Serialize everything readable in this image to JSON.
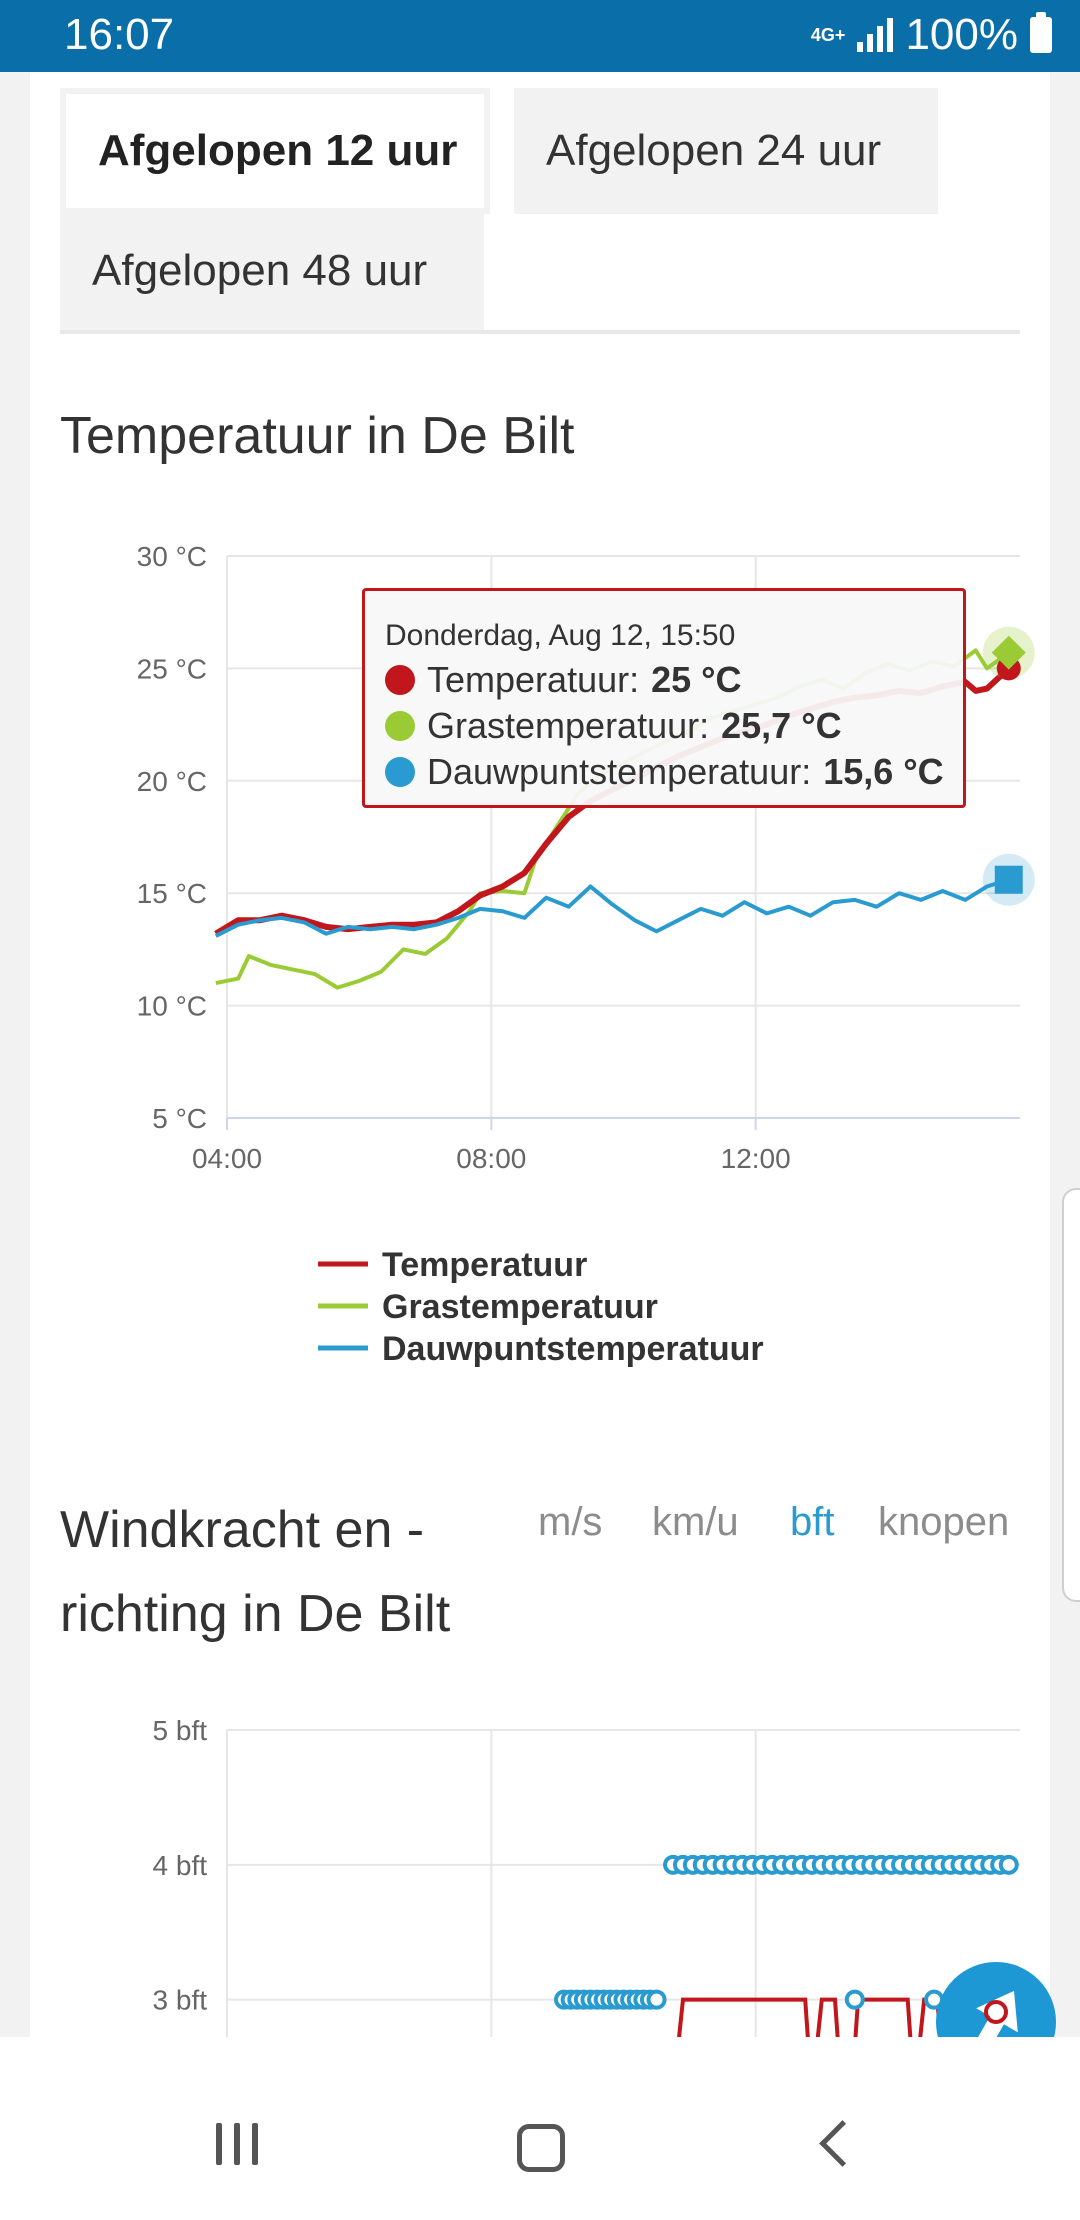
{
  "status_bar": {
    "time": "16:07",
    "network": "4G+",
    "battery": "100%"
  },
  "tabs": [
    {
      "label": "Afgelopen 12 uur",
      "active": true
    },
    {
      "label": "Afgelopen 24 uur",
      "active": false
    },
    {
      "label": "Afgelopen 48 uur",
      "active": false
    }
  ],
  "temperature": {
    "title": "Temperatuur in De Bilt",
    "tooltip": {
      "date": "Donderdag, Aug 12, 15:50",
      "rows": [
        {
          "label": "Temperatuur:",
          "value": "25 °C",
          "color": "#c0161c"
        },
        {
          "label": "Grastemperatuur:",
          "value": "25,7 °C",
          "color": "#9acb34"
        },
        {
          "label": "Dauwpuntstemperatuur:",
          "value": "15,6 °C",
          "color": "#2a9bd0"
        }
      ]
    }
  },
  "wind": {
    "title_line1": "Windkracht en -",
    "title_line2": "richting in De Bilt",
    "units": [
      "m/s",
      "km/u",
      "bft",
      "knopen"
    ],
    "active_unit": "bft"
  },
  "chart_data": [
    {
      "type": "line",
      "title": "Temperatuur in De Bilt",
      "x_ticks": [
        "04:00",
        "08:00",
        "12:00"
      ],
      "y_ticks": [
        "5 °C",
        "10 °C",
        "15 °C",
        "20 °C",
        "25 °C",
        "30 °C"
      ],
      "ylim": [
        5,
        30
      ],
      "xlim_hours": [
        4,
        16
      ],
      "legend": "bottom",
      "series": [
        {
          "name": "Temperatuur",
          "color": "#c0161c",
          "points": [
            [
              3.83,
              13.2
            ],
            [
              4.17,
              13.8
            ],
            [
              4.5,
              13.8
            ],
            [
              4.83,
              14.0
            ],
            [
              5.17,
              13.8
            ],
            [
              5.5,
              13.5
            ],
            [
              5.83,
              13.4
            ],
            [
              6.17,
              13.5
            ],
            [
              6.5,
              13.6
            ],
            [
              6.83,
              13.6
            ],
            [
              7.17,
              13.7
            ],
            [
              7.5,
              14.2
            ],
            [
              7.83,
              14.9
            ],
            [
              8.17,
              15.3
            ],
            [
              8.5,
              15.9
            ],
            [
              8.83,
              17.2
            ],
            [
              9.17,
              18.4
            ],
            [
              9.5,
              19.1
            ],
            [
              9.83,
              19.6
            ],
            [
              10.17,
              20.1
            ],
            [
              10.5,
              20.6
            ],
            [
              10.83,
              21.1
            ],
            [
              11.17,
              21.5
            ],
            [
              11.5,
              21.9
            ],
            [
              11.83,
              22.2
            ],
            [
              12.17,
              22.5
            ],
            [
              12.5,
              22.9
            ],
            [
              12.83,
              23.2
            ],
            [
              13.17,
              23.5
            ],
            [
              13.5,
              23.7
            ],
            [
              13.83,
              23.8
            ],
            [
              14.17,
              24.0
            ],
            [
              14.5,
              23.9
            ],
            [
              14.83,
              24.2
            ],
            [
              15.17,
              24.4
            ],
            [
              15.33,
              24.0
            ],
            [
              15.5,
              24.1
            ],
            [
              15.83,
              25.0
            ]
          ]
        },
        {
          "name": "Grastemperatuur",
          "color": "#9acb34",
          "points": [
            [
              3.83,
              11.0
            ],
            [
              4.17,
              11.2
            ],
            [
              4.33,
              12.2
            ],
            [
              4.67,
              11.8
            ],
            [
              5.0,
              11.6
            ],
            [
              5.33,
              11.4
            ],
            [
              5.67,
              10.8
            ],
            [
              6.0,
              11.1
            ],
            [
              6.33,
              11.5
            ],
            [
              6.67,
              12.5
            ],
            [
              7.0,
              12.3
            ],
            [
              7.33,
              13.0
            ],
            [
              7.67,
              14.2
            ],
            [
              7.83,
              15.0
            ],
            [
              8.17,
              15.1
            ],
            [
              8.5,
              15.0
            ],
            [
              8.67,
              16.5
            ],
            [
              9.0,
              18.0
            ],
            [
              9.33,
              19.5
            ],
            [
              9.67,
              20.3
            ],
            [
              10.0,
              20.8
            ],
            [
              10.33,
              21.3
            ],
            [
              10.67,
              21.8
            ],
            [
              11.0,
              22.2
            ],
            [
              11.33,
              22.8
            ],
            [
              11.67,
              23.1
            ],
            [
              12.0,
              23.4
            ],
            [
              12.33,
              23.7
            ],
            [
              12.67,
              24.2
            ],
            [
              13.0,
              24.5
            ],
            [
              13.33,
              24.1
            ],
            [
              13.67,
              24.8
            ],
            [
              14.0,
              25.2
            ],
            [
              14.33,
              24.9
            ],
            [
              14.67,
              25.3
            ],
            [
              15.0,
              25.1
            ],
            [
              15.33,
              25.8
            ],
            [
              15.5,
              25.0
            ],
            [
              15.83,
              25.7
            ]
          ]
        },
        {
          "name": "Dauwpuntstemperatuur",
          "color": "#2a9bd0",
          "points": [
            [
              3.83,
              13.1
            ],
            [
              4.17,
              13.6
            ],
            [
              4.5,
              13.8
            ],
            [
              4.83,
              13.9
            ],
            [
              5.17,
              13.7
            ],
            [
              5.5,
              13.2
            ],
            [
              5.83,
              13.5
            ],
            [
              6.17,
              13.4
            ],
            [
              6.5,
              13.5
            ],
            [
              6.83,
              13.4
            ],
            [
              7.17,
              13.6
            ],
            [
              7.5,
              13.9
            ],
            [
              7.83,
              14.3
            ],
            [
              8.17,
              14.2
            ],
            [
              8.5,
              13.9
            ],
            [
              8.83,
              14.8
            ],
            [
              9.17,
              14.4
            ],
            [
              9.5,
              15.3
            ],
            [
              9.83,
              14.5
            ],
            [
              10.17,
              13.8
            ],
            [
              10.5,
              13.3
            ],
            [
              10.83,
              13.8
            ],
            [
              11.17,
              14.3
            ],
            [
              11.5,
              14.0
            ],
            [
              11.83,
              14.6
            ],
            [
              12.17,
              14.1
            ],
            [
              12.5,
              14.4
            ],
            [
              12.83,
              14.0
            ],
            [
              13.17,
              14.6
            ],
            [
              13.5,
              14.7
            ],
            [
              13.83,
              14.4
            ],
            [
              14.17,
              15.0
            ],
            [
              14.5,
              14.7
            ],
            [
              14.83,
              15.1
            ],
            [
              15.17,
              14.7
            ],
            [
              15.5,
              15.3
            ],
            [
              15.83,
              15.6
            ]
          ]
        }
      ]
    },
    {
      "type": "line",
      "title": "Windkracht en - richting in De Bilt",
      "x_ticks": [],
      "y_ticks": [
        "3 bft",
        "4 bft",
        "5 bft"
      ],
      "ylim": [
        2.3,
        5
      ],
      "xlim_hours": [
        4,
        16
      ],
      "series": [
        {
          "name": "",
          "color": "#c0161c",
          "points": [
            [
              10.75,
              2.3
            ],
            [
              10.9,
              3.0
            ],
            [
              12.75,
              3.0
            ],
            [
              12.85,
              2.3
            ],
            [
              13.0,
              3.0
            ],
            [
              13.2,
              3.0
            ],
            [
              13.3,
              2.3
            ],
            [
              13.45,
              2.3
            ],
            [
              13.55,
              3.0
            ],
            [
              14.3,
              3.0
            ],
            [
              14.4,
              2.3
            ],
            [
              14.55,
              3.0
            ],
            [
              14.75,
              3.0
            ],
            [
              14.85,
              2.3
            ],
            [
              15.1,
              3.0
            ],
            [
              15.3,
              2.3
            ],
            [
              15.5,
              3.0
            ],
            [
              15.6,
              3.0
            ],
            [
              15.83,
              2.3
            ]
          ]
        },
        {
          "name": "",
          "color": "#2a9bd0",
          "points": [
            [
              9.1,
              3.0
            ],
            [
              9.2,
              3.0
            ],
            [
              9.3,
              3.0
            ],
            [
              9.4,
              3.0
            ],
            [
              9.5,
              3.0
            ],
            [
              9.6,
              3.0
            ],
            [
              9.7,
              3.0
            ],
            [
              9.8,
              3.0
            ],
            [
              9.9,
              3.0
            ],
            [
              10.0,
              3.0
            ],
            [
              10.1,
              3.0
            ],
            [
              10.2,
              3.0
            ],
            [
              10.3,
              3.0
            ],
            [
              10.4,
              3.0
            ],
            [
              10.5,
              3.0
            ],
            [
              10.75,
              4.0
            ],
            [
              10.9,
              4.0
            ],
            [
              11.05,
              4.0
            ],
            [
              11.2,
              4.0
            ],
            [
              11.35,
              4.0
            ],
            [
              11.5,
              4.0
            ],
            [
              11.65,
              4.0
            ],
            [
              11.8,
              4.0
            ],
            [
              11.95,
              4.0
            ],
            [
              12.1,
              4.0
            ],
            [
              12.25,
              4.0
            ],
            [
              12.4,
              4.0
            ],
            [
              12.55,
              4.0
            ],
            [
              12.7,
              4.0
            ],
            [
              12.85,
              4.0
            ],
            [
              13.0,
              4.0
            ],
            [
              13.15,
              4.0
            ],
            [
              13.3,
              4.0
            ],
            [
              13.45,
              4.0
            ],
            [
              13.6,
              4.0
            ],
            [
              13.75,
              4.0
            ],
            [
              13.9,
              4.0
            ],
            [
              14.05,
              4.0
            ],
            [
              14.2,
              4.0
            ],
            [
              14.35,
              4.0
            ],
            [
              14.5,
              4.0
            ],
            [
              14.65,
              4.0
            ],
            [
              14.8,
              4.0
            ],
            [
              14.95,
              4.0
            ],
            [
              15.1,
              4.0
            ],
            [
              15.25,
              4.0
            ],
            [
              15.4,
              4.0
            ],
            [
              15.55,
              4.0
            ],
            [
              15.7,
              4.0
            ],
            [
              15.83,
              4.0
            ],
            [
              13.5,
              3.0
            ],
            [
              14.7,
              3.0
            ],
            [
              15.1,
              3.0
            ]
          ]
        }
      ]
    }
  ]
}
